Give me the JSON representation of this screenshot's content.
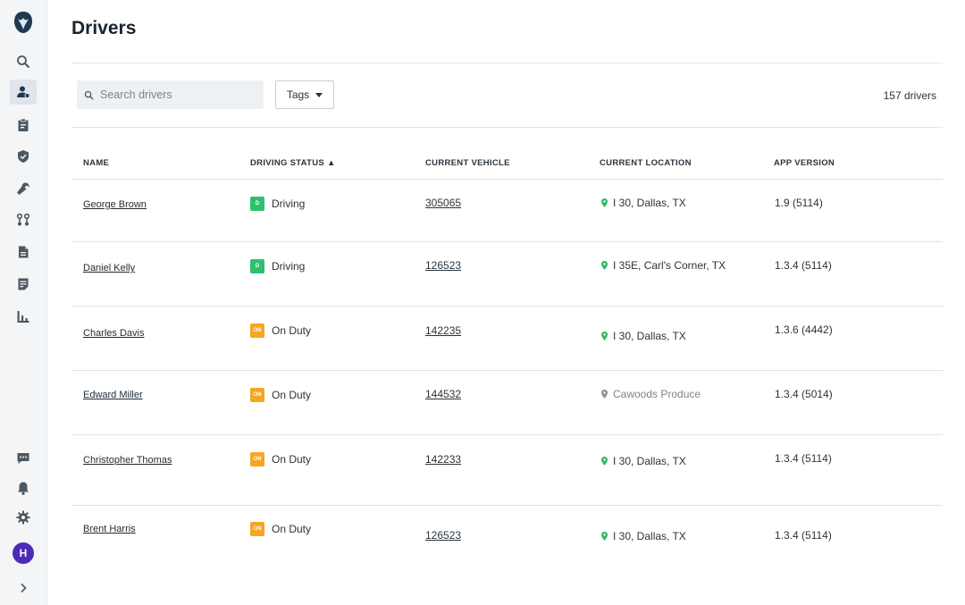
{
  "page": {
    "title": "Drivers"
  },
  "toolbar": {
    "search_placeholder": "Search drivers",
    "tags_label": "Tags",
    "driver_count": "157 drivers"
  },
  "sidebar": {
    "icons": [
      "logo-icon",
      "search-icon",
      "drivers-icon",
      "clipboard-icon",
      "shield-icon",
      "wrench-icon",
      "routes-icon",
      "documents-icon",
      "notes-icon",
      "reports-icon",
      "messages-icon",
      "bell-icon",
      "gear-icon"
    ],
    "avatar_initial": "H",
    "expand_icon": "chevron-right-icon"
  },
  "colors": {
    "driving": "#2fbf71",
    "on_duty": "#f5a623",
    "pin_green": "#34b866",
    "pin_grey": "#8a949b",
    "avatar": "#4b2bb8"
  },
  "table": {
    "headers": {
      "name": "NAME",
      "status": "DRIVING STATUS ▲",
      "vehicle": "CURRENT VEHICLE",
      "location": "CURRENT LOCATION",
      "version": "APP VERSION"
    },
    "rows": [
      {
        "name": "George Brown",
        "badge": "D",
        "status": "Driving",
        "vehicle": "305065",
        "location": "I 30, Dallas, TX",
        "version": "1.9 (5114)"
      },
      {
        "name": "Daniel Kelly",
        "badge": "D",
        "status": "Driving",
        "vehicle": "126523",
        "location": "I 35E, Carl's Corner, TX",
        "version": "1.3.4 (5114)"
      },
      {
        "name": "Charles Davis",
        "badge": "ON",
        "status": "On Duty",
        "vehicle": "142235",
        "location": "I 30, Dallas, TX",
        "version": "1.3.6 (4442)"
      },
      {
        "name": "Edward Miller",
        "badge": "ON",
        "status": "On Duty",
        "vehicle": "144532",
        "location": "Cawoods Produce",
        "version": "1.3.4 (5014)"
      },
      {
        "name": "Christopher Thomas",
        "badge": "ON",
        "status": "On Duty",
        "vehicle": "142233",
        "location": "I 30, Dallas, TX",
        "version": "1.3.4 (5114)"
      },
      {
        "name": "Brent Harris",
        "badge": "ON",
        "status": "On Duty",
        "vehicle": "126523",
        "location": "I 30, Dallas, TX",
        "version": "1.3.4 (5114)"
      }
    ]
  }
}
